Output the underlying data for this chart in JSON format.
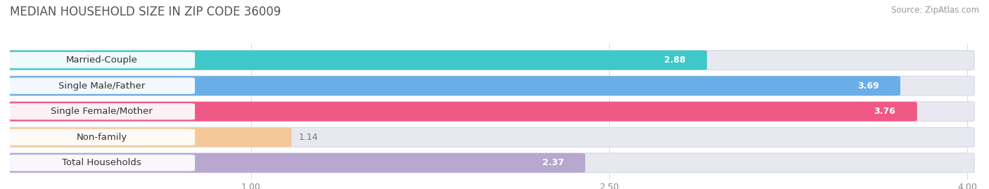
{
  "title": "MEDIAN HOUSEHOLD SIZE IN ZIP CODE 36009",
  "source": "Source: ZipAtlas.com",
  "categories": [
    "Married-Couple",
    "Single Male/Father",
    "Single Female/Mother",
    "Non-family",
    "Total Households"
  ],
  "values": [
    2.88,
    3.69,
    3.76,
    1.14,
    2.37
  ],
  "bar_colors": [
    "#3ec8c8",
    "#6aaee8",
    "#f05888",
    "#f5c89a",
    "#b8a8d0"
  ],
  "xlim_min": 0.0,
  "xlim_max": 4.0,
  "xticks": [
    1.0,
    2.5,
    4.0
  ],
  "background_color": "#ffffff",
  "chart_bg_color": "#f0f0f5",
  "bar_bg_color": "#e8e8f0",
  "title_fontsize": 12,
  "source_fontsize": 8.5,
  "label_fontsize": 9.5,
  "value_fontsize": 9,
  "tick_fontsize": 9,
  "value_threshold": 1.5
}
